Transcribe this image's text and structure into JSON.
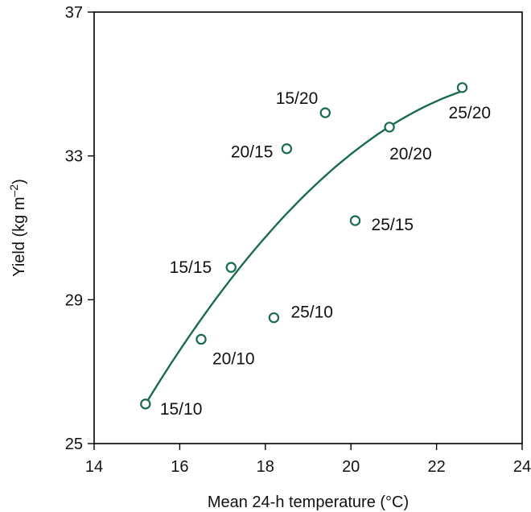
{
  "chart_data": {
    "type": "scatter",
    "xlabel": "Mean 24-h temperature (°C)",
    "ylabel_main": "Yield (kg m",
    "ylabel_sup": "–2",
    "ylabel_close": ")",
    "xlim": [
      14,
      24
    ],
    "ylim": [
      25,
      37
    ],
    "x_ticks": [
      14,
      16,
      18,
      20,
      22,
      24
    ],
    "y_ticks": [
      25,
      29,
      33,
      37
    ],
    "grid": false,
    "legend": "none",
    "color": "#1a6b4f",
    "points": [
      {
        "label": "15/10",
        "x": 15.2,
        "y": 26.1
      },
      {
        "label": "20/10",
        "x": 16.5,
        "y": 27.9
      },
      {
        "label": "15/15",
        "x": 17.2,
        "y": 29.9
      },
      {
        "label": "25/10",
        "x": 18.2,
        "y": 28.5
      },
      {
        "label": "20/15",
        "x": 18.5,
        "y": 33.2
      },
      {
        "label": "15/20",
        "x": 19.4,
        "y": 34.2
      },
      {
        "label": "25/15",
        "x": 20.1,
        "y": 31.2
      },
      {
        "label": "20/20",
        "x": 20.9,
        "y": 33.8
      },
      {
        "label": "25/20",
        "x": 22.6,
        "y": 34.9
      }
    ],
    "fitted_curve": {
      "type": "quadratic",
      "x_range": [
        15.2,
        22.6
      ],
      "points": [
        [
          15.2,
          26.1
        ],
        [
          17.0,
          29.3
        ],
        [
          19.0,
          32.0
        ],
        [
          21.0,
          33.9
        ],
        [
          22.6,
          34.8
        ]
      ]
    }
  }
}
